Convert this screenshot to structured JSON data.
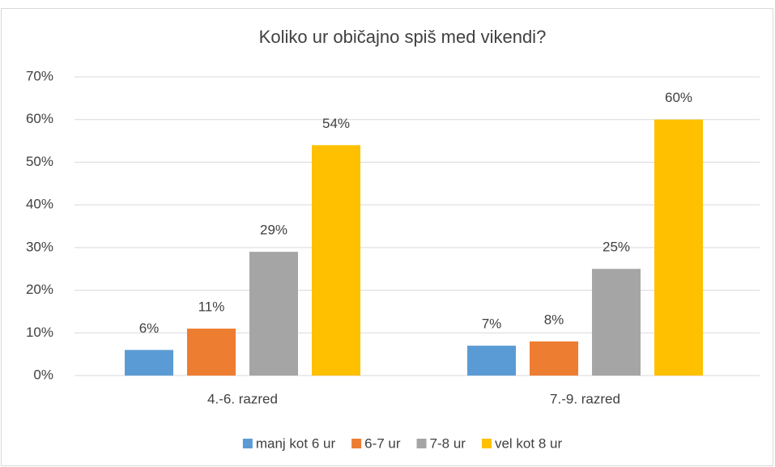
{
  "chart_data": {
    "type": "bar",
    "title": "Koliko ur običajno spiš med vikendi?",
    "categories": [
      "4.-6. razred",
      "7.-9. razred"
    ],
    "series": [
      {
        "name": "manj kot 6 ur",
        "color": "#5b9bd5",
        "values": [
          6,
          7
        ],
        "value_labels": [
          "6%",
          "7%"
        ]
      },
      {
        "name": "6-7 ur",
        "color": "#ed7d31",
        "values": [
          11,
          8
        ],
        "value_labels": [
          "11%",
          "8%"
        ]
      },
      {
        "name": "7-8 ur",
        "color": "#a5a5a5",
        "values": [
          29,
          25
        ],
        "value_labels": [
          "29%",
          "25%"
        ]
      },
      {
        "name": "vel kot 8 ur",
        "color": "#ffc000",
        "values": [
          54,
          60
        ],
        "value_labels": [
          "54%",
          "60%"
        ]
      }
    ],
    "ylim": [
      0,
      70
    ],
    "yticks": [
      {
        "value": 0,
        "label": "0%"
      },
      {
        "value": 10,
        "label": "10%"
      },
      {
        "value": 20,
        "label": "20%"
      },
      {
        "value": 30,
        "label": "30%"
      },
      {
        "value": 40,
        "label": "40%"
      },
      {
        "value": 50,
        "label": "50%"
      },
      {
        "value": 60,
        "label": "60%"
      },
      {
        "value": 70,
        "label": "70%"
      }
    ],
    "grid": true,
    "legend": "bottom"
  }
}
